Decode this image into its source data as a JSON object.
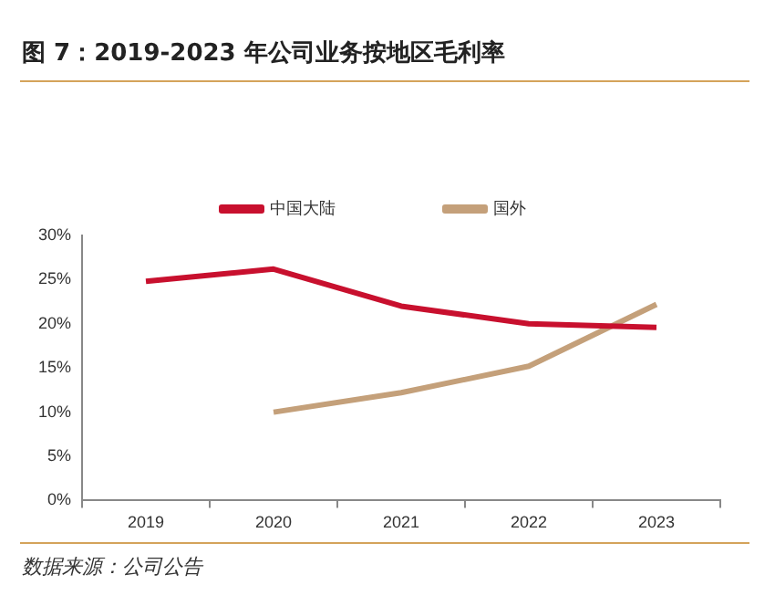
{
  "chart_data": {
    "type": "line",
    "title": "图 7：2019-2023 年公司业务按地区毛利率",
    "categories": [
      "2019",
      "2020",
      "2021",
      "2022",
      "2023"
    ],
    "series": [
      {
        "name": "中国大陆",
        "color": "#c8102e",
        "values": [
          24.8,
          26.2,
          22.0,
          20.0,
          19.6
        ]
      },
      {
        "name": "国外",
        "color": "#c4a07a",
        "values": [
          null,
          10.0,
          12.2,
          15.2,
          22.2
        ]
      }
    ],
    "ylim": [
      0,
      30
    ],
    "yticks": [
      {
        "value": 0,
        "label": "0%"
      },
      {
        "value": 5,
        "label": "5%"
      },
      {
        "value": 10,
        "label": "10%"
      },
      {
        "value": 15,
        "label": "15%"
      },
      {
        "value": 20,
        "label": "20%"
      },
      {
        "value": 25,
        "label": "25%"
      },
      {
        "value": 30,
        "label": "30%"
      }
    ],
    "grid": false,
    "legend": "top",
    "marker": "none",
    "line_style": "solid",
    "annotations": [
      "数据来源：公司公告"
    ]
  }
}
